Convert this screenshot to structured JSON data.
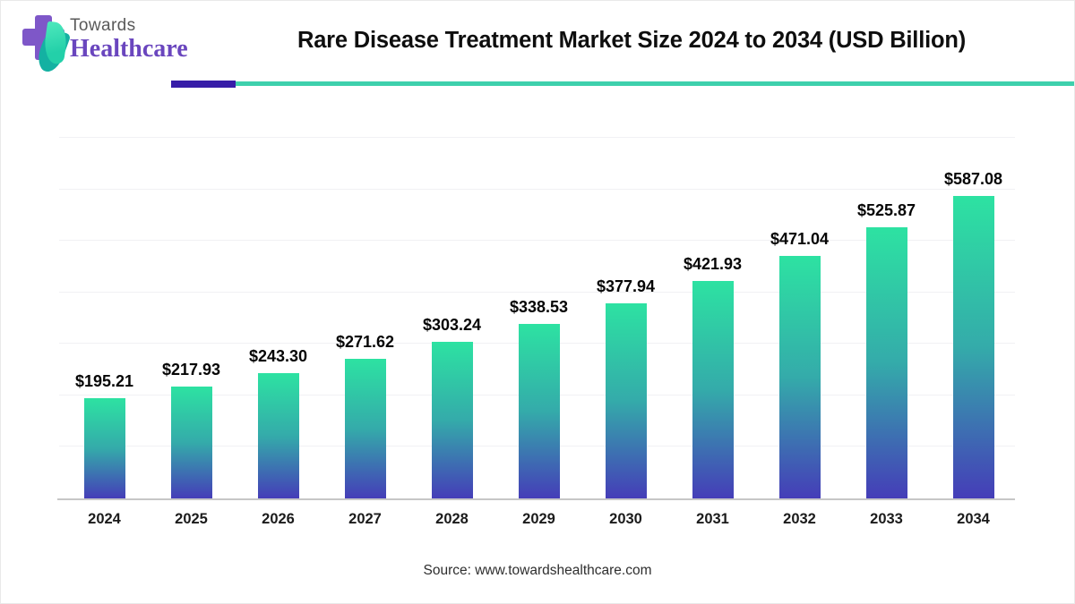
{
  "brand": {
    "name_top": "Towards",
    "name_bottom": "Healthcare",
    "logo_colors": {
      "cross": "#7e57c8",
      "leaf_light": "#2fd8ac",
      "leaf_dark": "#14b1a2"
    }
  },
  "header": {
    "title": "Rare Disease Treatment Market Size 2024 to 2034 (USD Billion)",
    "underline_purple": "#371da8",
    "underline_teal": "#3ed0ac"
  },
  "chart_data": {
    "type": "bar",
    "title": "Rare Disease Treatment Market Size 2024 to 2034 (USD Billion)",
    "categories": [
      "2024",
      "2025",
      "2026",
      "2027",
      "2028",
      "2029",
      "2030",
      "2031",
      "2032",
      "2033",
      "2034"
    ],
    "values": [
      195.21,
      217.93,
      243.3,
      271.62,
      303.24,
      338.53,
      377.94,
      421.93,
      471.04,
      525.87,
      587.08
    ],
    "value_labels": [
      "$195.21",
      "$217.93",
      "$243.30",
      "$271.62",
      "$303.24",
      "$338.53",
      "$377.94",
      "$421.93",
      "$471.04",
      "$525.87",
      "$587.08"
    ],
    "unit": "USD Billion",
    "xlabel": "",
    "ylabel": "",
    "ylim": [
      0,
      700
    ],
    "gridline_step": 100,
    "grid": true,
    "legend_position": "none",
    "bar_gradient_top": "#2de2a2",
    "bar_gradient_mid": "#34abaa",
    "bar_gradient_bottom": "#453db8",
    "axis_line_color": "#c7c7c7",
    "gridline_color": "#f1f1f4"
  },
  "footer": {
    "source": "Source: www.towardshealthcare.com"
  }
}
